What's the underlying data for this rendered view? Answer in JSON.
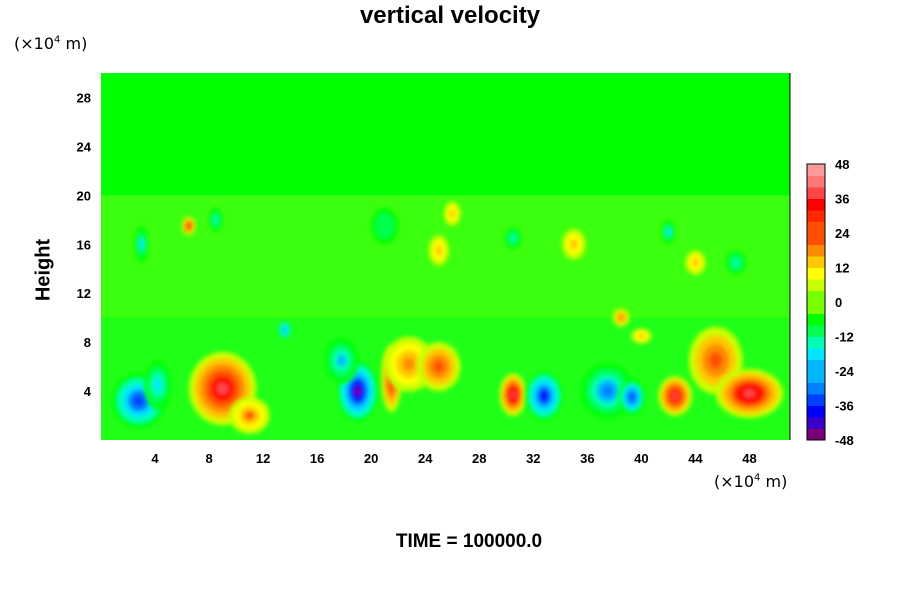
{
  "page": {
    "title": "vertical velocity",
    "time_label": "TIME = 100000.0"
  },
  "chart_data": {
    "type": "heatmap",
    "title": "vertical velocity",
    "xlabel": "",
    "ylabel": "Height",
    "x_unit": {
      "prefix": "(×10",
      "exp": "4",
      "suffix": " m)"
    },
    "y_unit": {
      "prefix": "(×10",
      "exp": "4",
      "suffix": " m)"
    },
    "xlim": [
      0,
      51
    ],
    "ylim": [
      0,
      30
    ],
    "x_ticks": [
      4,
      8,
      12,
      16,
      20,
      24,
      28,
      32,
      36,
      40,
      44,
      48
    ],
    "y_ticks": [
      4,
      8,
      12,
      16,
      20,
      24,
      28
    ],
    "colorbar": {
      "min": -48,
      "max": 48,
      "step": 4,
      "ticks": [
        48,
        36,
        24,
        12,
        0,
        -12,
        -24,
        -36,
        -48
      ]
    },
    "features": [
      {
        "x": 2.8,
        "y": 3.2,
        "sx": 1.6,
        "sy": 1.8,
        "value": -34
      },
      {
        "x": 4.2,
        "y": 4.5,
        "sx": 0.8,
        "sy": 1.6,
        "value": -20
      },
      {
        "x": 9.0,
        "y": 4.2,
        "sx": 2.0,
        "sy": 2.4,
        "value": 38
      },
      {
        "x": 11.0,
        "y": 2.0,
        "sx": 1.2,
        "sy": 1.2,
        "value": 22
      },
      {
        "x": 19.0,
        "y": 4.0,
        "sx": 1.2,
        "sy": 2.0,
        "value": -46
      },
      {
        "x": 17.8,
        "y": 6.5,
        "sx": 1.0,
        "sy": 1.5,
        "value": -22
      },
      {
        "x": 21.5,
        "y": 5.0,
        "sx": 0.6,
        "sy": 2.2,
        "value": 32
      },
      {
        "x": 22.8,
        "y": 6.2,
        "sx": 1.5,
        "sy": 1.8,
        "value": 20
      },
      {
        "x": 25.0,
        "y": 6.0,
        "sx": 1.3,
        "sy": 1.6,
        "value": 24
      },
      {
        "x": 30.5,
        "y": 3.7,
        "sx": 0.8,
        "sy": 1.4,
        "value": 40
      },
      {
        "x": 32.8,
        "y": 3.6,
        "sx": 1.1,
        "sy": 1.6,
        "value": -38
      },
      {
        "x": 37.5,
        "y": 4.0,
        "sx": 1.6,
        "sy": 1.8,
        "value": -28
      },
      {
        "x": 39.3,
        "y": 3.5,
        "sx": 0.8,
        "sy": 1.2,
        "value": -36
      },
      {
        "x": 42.5,
        "y": 3.6,
        "sx": 1.0,
        "sy": 1.3,
        "value": 36
      },
      {
        "x": 45.5,
        "y": 6.5,
        "sx": 1.6,
        "sy": 2.2,
        "value": 24
      },
      {
        "x": 48.0,
        "y": 3.8,
        "sx": 2.0,
        "sy": 1.6,
        "value": 40
      },
      {
        "x": 13.6,
        "y": 9.0,
        "sx": 0.4,
        "sy": 0.6,
        "value": -26
      },
      {
        "x": 6.5,
        "y": 17.5,
        "sx": 0.4,
        "sy": 0.6,
        "value": 30
      },
      {
        "x": 3.0,
        "y": 16.0,
        "sx": 0.4,
        "sy": 1.2,
        "value": -18
      },
      {
        "x": 8.5,
        "y": 18.0,
        "sx": 0.4,
        "sy": 0.8,
        "value": -14
      },
      {
        "x": 21.0,
        "y": 17.5,
        "sx": 0.8,
        "sy": 1.2,
        "value": -12
      },
      {
        "x": 25.0,
        "y": 15.5,
        "sx": 0.6,
        "sy": 1.0,
        "value": 16
      },
      {
        "x": 26.0,
        "y": 18.5,
        "sx": 0.5,
        "sy": 0.8,
        "value": 14
      },
      {
        "x": 30.5,
        "y": 16.5,
        "sx": 0.5,
        "sy": 0.7,
        "value": -16
      },
      {
        "x": 35.0,
        "y": 16.0,
        "sx": 0.7,
        "sy": 1.0,
        "value": 12
      },
      {
        "x": 40.0,
        "y": 8.5,
        "sx": 0.6,
        "sy": 0.5,
        "value": 14
      },
      {
        "x": 42.0,
        "y": 17.0,
        "sx": 0.4,
        "sy": 0.8,
        "value": -18
      },
      {
        "x": 47.0,
        "y": 14.5,
        "sx": 0.6,
        "sy": 0.8,
        "value": -16
      },
      {
        "x": 44.0,
        "y": 14.5,
        "sx": 0.6,
        "sy": 0.8,
        "value": 14
      },
      {
        "x": 38.5,
        "y": 10.0,
        "sx": 0.5,
        "sy": 0.6,
        "value": 18
      }
    ],
    "color_scale": [
      "#7a007a",
      "#3c00c8",
      "#0000ff",
      "#0040ff",
      "#0080ff",
      "#00b4ff",
      "#00e6ff",
      "#00ffb4",
      "#00ff50",
      "#00ff00",
      "#78ff00",
      "#c8ff00",
      "#ffff00",
      "#ffc800",
      "#ff8c00",
      "#ff5000",
      "#ff2800",
      "#ff0000",
      "#ff4646",
      "#ff7878",
      "#ff9a9a"
    ]
  }
}
